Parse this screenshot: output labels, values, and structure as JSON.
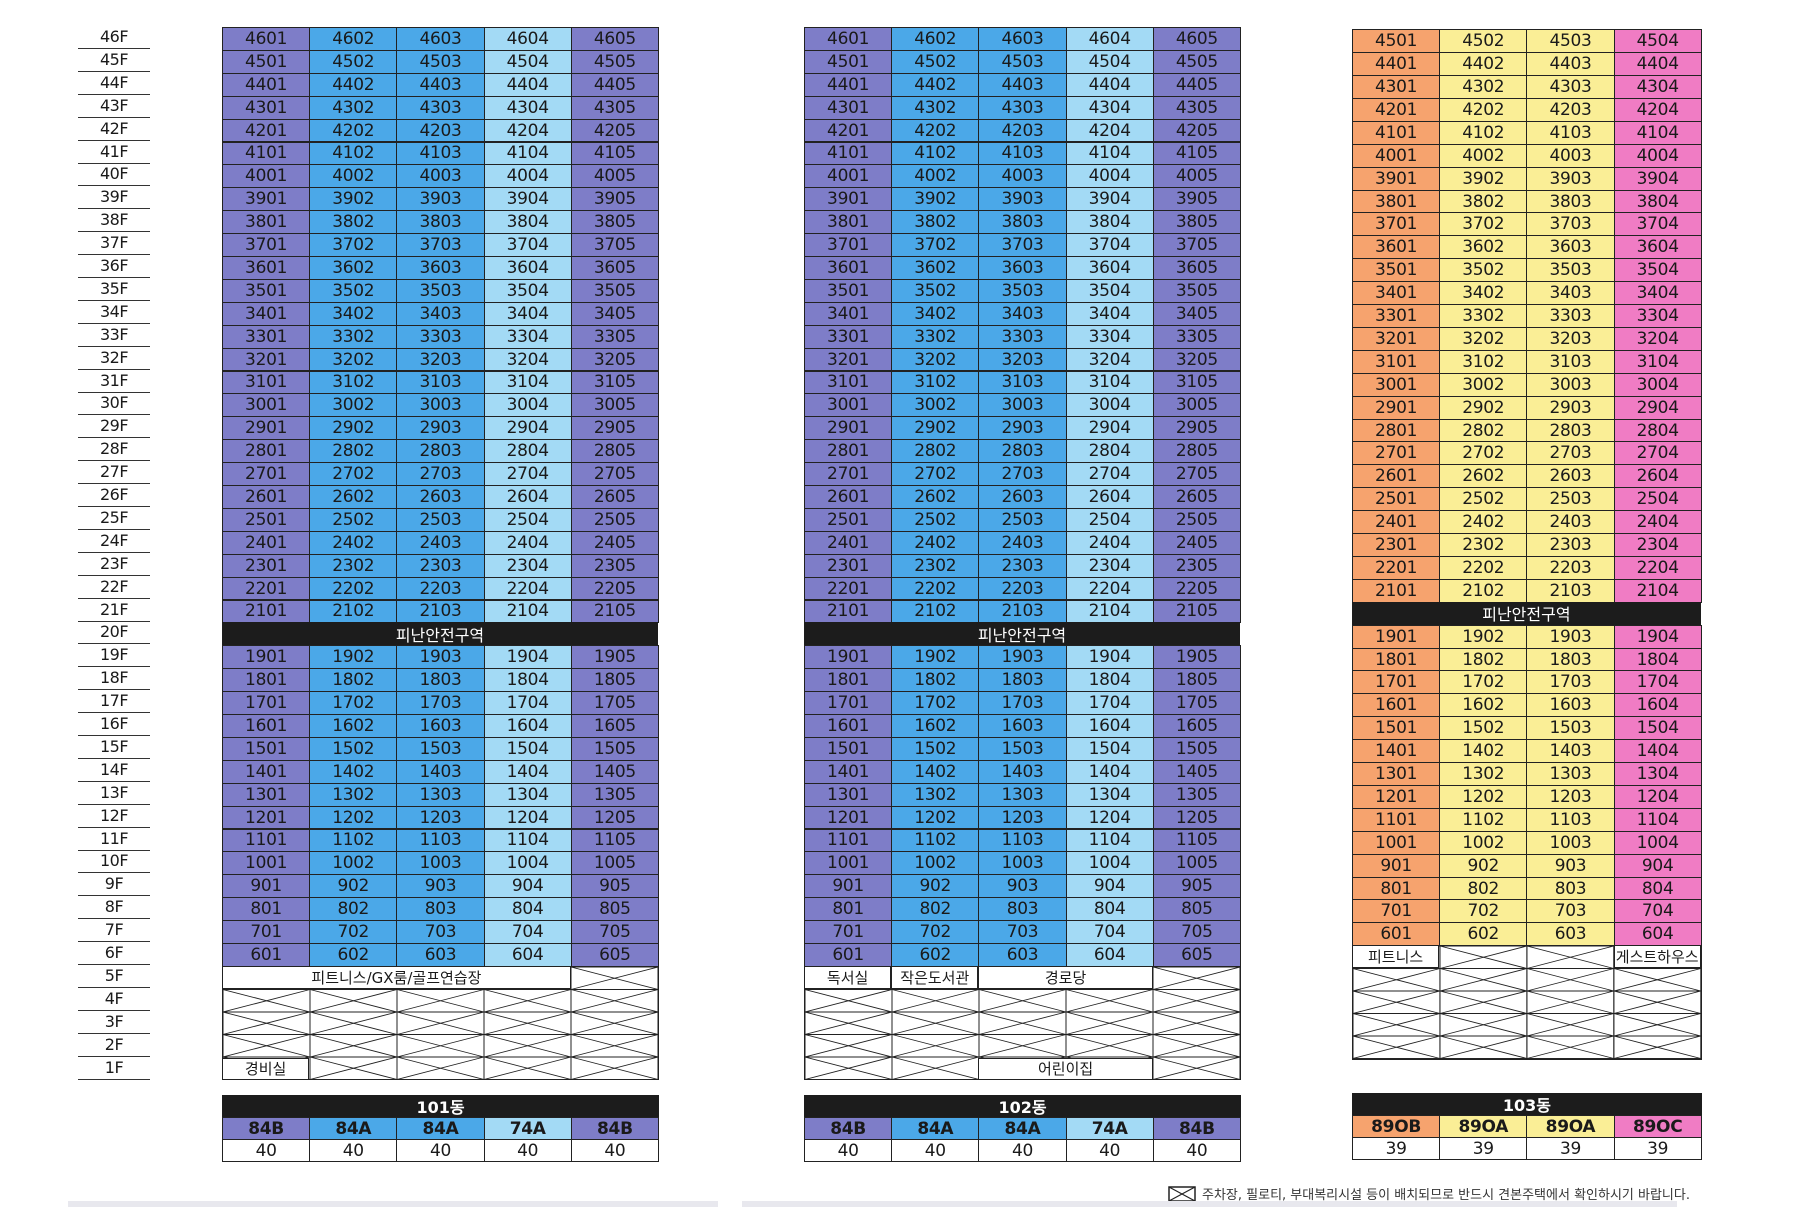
{
  "floors": [
    "46F",
    "45F",
    "44F",
    "43F",
    "42F",
    "41F",
    "40F",
    "39F",
    "38F",
    "37F",
    "36F",
    "35F",
    "34F",
    "33F",
    "32F",
    "31F",
    "30F",
    "29F",
    "28F",
    "27F",
    "26F",
    "25F",
    "24F",
    "23F",
    "22F",
    "21F",
    "20F",
    "19F",
    "18F",
    "17F",
    "16F",
    "15F",
    "14F",
    "13F",
    "12F",
    "11F",
    "10F",
    "9F",
    "8F",
    "7F",
    "6F",
    "5F",
    "4F",
    "3F",
    "2F",
    "1F"
  ],
  "refuge_label": "피난안전구역",
  "buildings": [
    {
      "name": "101동",
      "top_floor": 46,
      "units": 5,
      "colors": [
        "#7e7dc8",
        "#4ba8e8",
        "#4ba8e8",
        "#a3daf5",
        "#7e7dc8"
      ],
      "facilities": [
        {
          "floor": "5F",
          "label": "피트니스/GX룸/골프연습장"
        },
        {
          "floor": "1F",
          "label": "경비실"
        }
      ],
      "types": [
        "84B",
        "84A",
        "84A",
        "74A",
        "84B"
      ],
      "counts": [
        "40",
        "40",
        "40",
        "40",
        "40"
      ]
    },
    {
      "name": "102동",
      "top_floor": 46,
      "units": 5,
      "colors": [
        "#7e7dc8",
        "#4ba8e8",
        "#4ba8e8",
        "#a3daf5",
        "#7e7dc8"
      ],
      "facilities": [
        {
          "floor": "5F",
          "label": "독서실"
        },
        {
          "floor": "5F",
          "label": "작은도서관"
        },
        {
          "floor": "5F",
          "label": "경로당"
        },
        {
          "floor": "1F",
          "label": "어린이집"
        }
      ],
      "types": [
        "84B",
        "84A",
        "84A",
        "74A",
        "84B"
      ],
      "counts": [
        "40",
        "40",
        "40",
        "40",
        "40"
      ]
    },
    {
      "name": "103동",
      "top_floor": 45,
      "units": 4,
      "colors": [
        "#f6a36e",
        "#faee96",
        "#faee96",
        "#f07cc4"
      ],
      "facilities": [
        {
          "floor": "5F",
          "label": "피트니스"
        },
        {
          "floor": "5F",
          "label": "게스트하우스"
        }
      ],
      "types": [
        "89OB",
        "89OA",
        "89OA",
        "89OC"
      ],
      "counts": [
        "39",
        "39",
        "39",
        "39"
      ]
    }
  ],
  "footnote": "주차장, 필로티, 부대복리시설 등이 배치되므로 반드시 견본주택에서 확인하시기 바랍니다."
}
